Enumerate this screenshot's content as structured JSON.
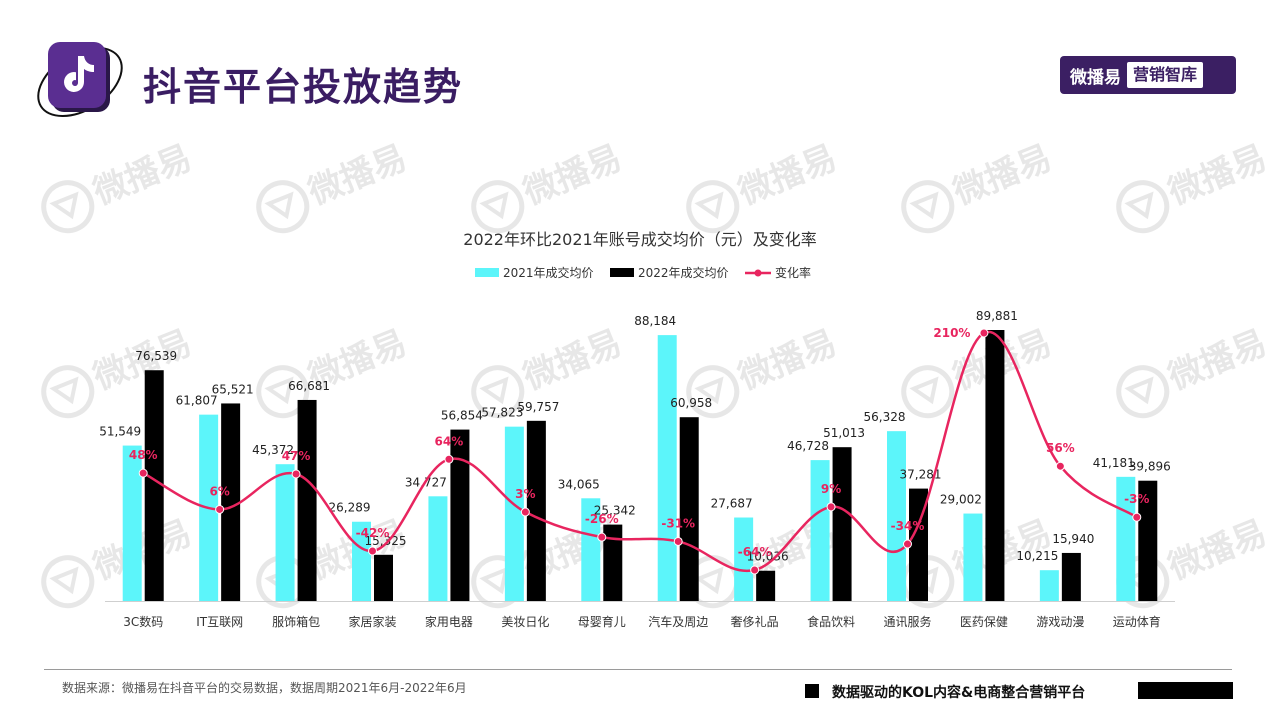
{
  "header": {
    "title": "抖音平台投放趋势",
    "brand_name": "微播易",
    "brand_sub": "营销智库"
  },
  "watermark_text": "微播易",
  "footer": {
    "source": "数据来源：微播易在抖音平台的交易数据，数据周期2021年6月-2022年6月",
    "tagline": "数据驱动的KOL内容&电商整合营销平台"
  },
  "colors": {
    "series_2021": "#5cf5fa",
    "series_2022": "#000000",
    "change_line": "#e8255f",
    "title_purple": "#3a1d63"
  },
  "icons": [
    "tiktok-logo-icon",
    "watermark-logo-icon"
  ],
  "chart_data": {
    "type": "bar",
    "title": "2022年环比2021年账号成交均价（元）及变化率",
    "legend_position": "top-center",
    "grid": false,
    "ylim": [
      0,
      95000
    ],
    "categories": [
      "3C数码",
      "IT互联网",
      "服饰箱包",
      "家居家装",
      "家用电器",
      "美妆日化",
      "母婴育儿",
      "汽车及周边",
      "奢侈礼品",
      "食品饮料",
      "通讯服务",
      "医药保健",
      "游戏动漫",
      "运动体育"
    ],
    "series": [
      {
        "name": "2021年成交均价",
        "kind": "bar",
        "values": [
          51549,
          61807,
          45372,
          26289,
          34727,
          57823,
          34065,
          88184,
          27687,
          46728,
          56328,
          29002,
          10215,
          41181
        ]
      },
      {
        "name": "2022年成交均价",
        "kind": "bar",
        "values": [
          76539,
          65521,
          66681,
          15325,
          56854,
          59757,
          25342,
          60958,
          10036,
          51013,
          37281,
          89881,
          15940,
          39896
        ]
      },
      {
        "name": "变化率",
        "kind": "line",
        "smooth": true,
        "values": [
          48,
          6,
          47,
          -42,
          64,
          3,
          -26,
          -31,
          -64,
          9,
          -34,
          210,
          56,
          -3
        ],
        "labels": [
          "48%",
          "6%",
          "47%",
          "-42%",
          "64%",
          "3%",
          "-26%",
          "-31%",
          "-64%",
          "9%",
          "-34%",
          "210%",
          "56%",
          "-3%"
        ]
      }
    ],
    "bar_labels_2021": [
      "51,549",
      "61,807",
      "45,372",
      "26,289",
      "34,727",
      "57,823",
      "34,065",
      "88,184",
      "27,687",
      "46,728",
      "56,328",
      "29,002",
      "10,215",
      "41,181"
    ],
    "bar_labels_2022": [
      "76,539",
      "65,521",
      "66,681",
      "15,325",
      "56,854",
      "59,757",
      "25,342",
      "60,958",
      "10,036",
      "51,013",
      "37,281",
      "89,881",
      "15,940",
      "39,896"
    ]
  }
}
